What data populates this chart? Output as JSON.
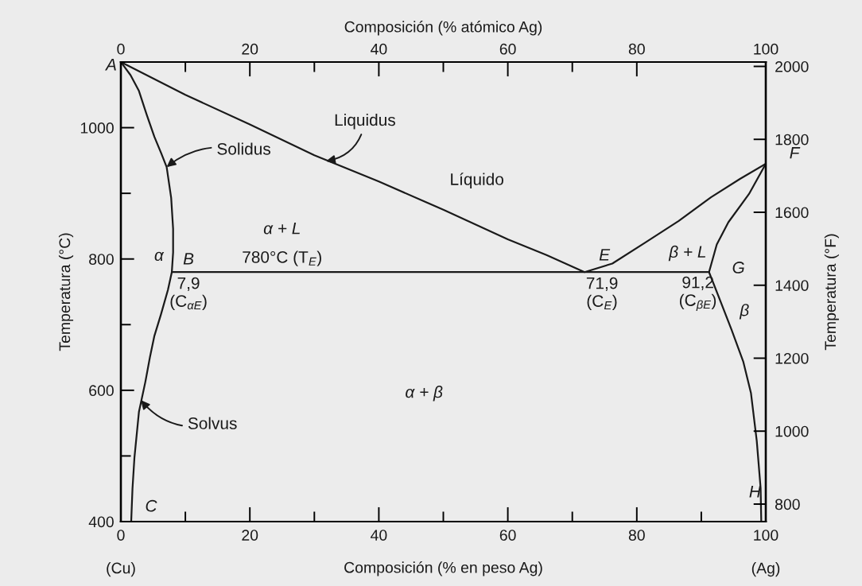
{
  "chart_data": {
    "type": "line",
    "x2label": "Composición (% atómico Ag)",
    "x2lim": [
      0,
      100
    ],
    "x2ticks": [
      0,
      {
        "value": 10,
        "label": null
      },
      20,
      {
        "value": 30,
        "label": null
      },
      40,
      {
        "value": 50,
        "label": null
      },
      60,
      {
        "value": 70,
        "label": null
      },
      80,
      100
    ],
    "xlabel": "Composición (% en peso Ag)",
    "ylabel": "Temperatura (°C)",
    "y2label": "Temperatura (°F)",
    "xlim": [
      0,
      100
    ],
    "xticks": [
      0,
      {
        "value": 10,
        "label": null
      },
      20,
      {
        "value": 30,
        "label": null
      },
      40,
      {
        "value": 50,
        "label": null
      },
      60,
      {
        "value": 70,
        "label": null
      },
      80,
      {
        "value": 90,
        "label": null
      },
      100
    ],
    "ylim": [
      400,
      1100
    ],
    "yticks": [
      400,
      {
        "value": 500,
        "label": null
      },
      600,
      {
        "value": 700,
        "label": null
      },
      800,
      {
        "value": 900,
        "label": null
      },
      1000
    ],
    "y2lim": [
      752,
      2012
    ],
    "y2ticks": [
      800,
      1000,
      1200,
      1400,
      1600,
      1800,
      2000
    ],
    "series": [
      {
        "color": "#1a1a1a",
        "x": [
          0,
          10,
          20,
          30,
          40,
          50,
          60,
          66,
          71.9,
          76.2,
          81.3,
          86.5,
          91.5,
          96,
          100
        ],
        "values": [
          1100,
          1050,
          1005,
          958,
          918,
          875,
          830,
          806,
          780,
          793,
          825,
          858,
          894,
          922,
          945
        ]
      },
      {
        "color": "#1a1a1a",
        "x": [
          0,
          1.5,
          2.8,
          4,
          5.2,
          6.3,
          7.1,
          7.8,
          8.1,
          8.1,
          7.9,
          7.3,
          6.2,
          5.2,
          4.5,
          3.8,
          2.8,
          2.1,
          1.8,
          1.6
        ],
        "values": [
          1100,
          1080,
          1056,
          1020,
          986,
          960,
          940,
          893,
          846,
          810,
          780,
          753,
          715,
          683,
          650,
          613,
          567,
          497,
          450,
          400
        ]
      },
      {
        "color": "#1a1a1a",
        "x": [
          100,
          97.4,
          94.2,
          92.4,
          91.2,
          92.6,
          94.7,
          96.5,
          97.7,
          98.6,
          99.2,
          99.3
        ],
        "values": [
          945,
          899,
          856,
          822,
          780,
          745,
          692,
          644,
          596,
          523,
          451,
          400
        ]
      },
      {
        "color": "#1a1a1a",
        "x": [
          7.9,
          91.2
        ],
        "values": [
          780,
          780
        ]
      }
    ],
    "annotations": [
      {
        "text": "Liquidus",
        "x": 31.8,
        "y": 949
      },
      {
        "text": "Solidus",
        "x": 7.1,
        "y": 940
      },
      {
        "text": "Solvus",
        "x": 3.1,
        "y": 585
      },
      "Líquido",
      "α + L",
      "β + L",
      "α",
      "β",
      "α + β",
      {
        "text": "A",
        "x": 0,
        "y": 1100
      },
      {
        "text": "B",
        "x": 7.9,
        "y": 780
      },
      {
        "text": "C",
        "x": 1.6,
        "y": 400
      },
      {
        "text": "E",
        "x": 71.9,
        "y": 780
      },
      {
        "text": "F",
        "x": 100,
        "y": 945
      },
      {
        "text": "G",
        "x": 91.2,
        "y": 780
      },
      {
        "text": "H",
        "x": 99.3,
        "y": 400
      },
      {
        "text": "780°C (T$_{E}$)",
        "x": 25,
        "y": 780
      },
      {
        "text": "7,9\n(C$_{αE}$)",
        "x": 7.9,
        "y": 780
      },
      {
        "text": "71,9\n(C$_{E}$)",
        "x": 71.9,
        "y": 780
      },
      {
        "text": "91,2\n(C$_{βE}$)",
        "x": 91.2,
        "y": 780
      },
      "(Cu)",
      "(Ag)"
    ]
  }
}
